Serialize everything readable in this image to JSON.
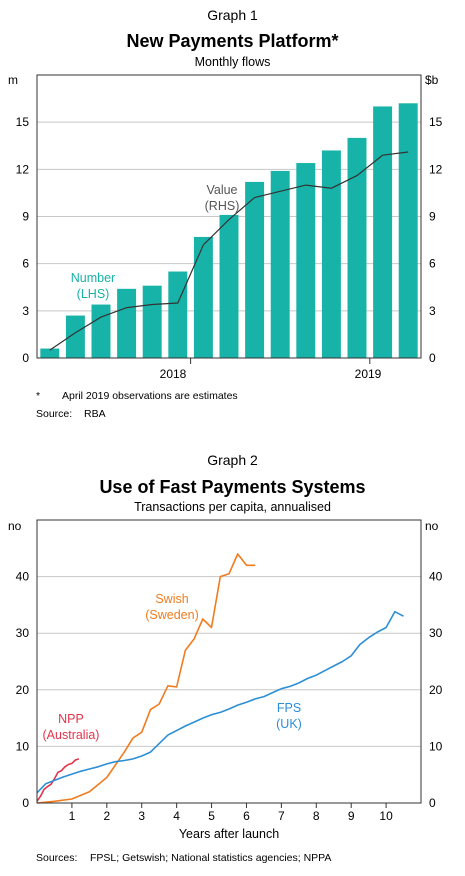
{
  "chart_data": [
    {
      "type": "bar",
      "graph_label": "Graph 1",
      "title": "New Payments Platform*",
      "subtitle": "Monthly flows",
      "left_axis": {
        "unit": "m",
        "ylim": [
          0,
          18
        ],
        "ticks": [
          0,
          3,
          6,
          9,
          12,
          15
        ]
      },
      "right_axis": {
        "unit": "$b",
        "ylim": [
          0,
          18
        ],
        "ticks": [
          0,
          3,
          6,
          9,
          12,
          15
        ]
      },
      "x_tick_labels": [
        "2018",
        "2019"
      ],
      "series": [
        {
          "name": "Number",
          "axis_note": "(LHS)",
          "kind": "bar",
          "color": "#17b3a8",
          "values": [
            0.6,
            2.7,
            3.4,
            4.4,
            4.6,
            5.5,
            7.7,
            9.1,
            11.2,
            11.9,
            12.4,
            13.2,
            14.0,
            16.0,
            16.2
          ]
        },
        {
          "name": "Value",
          "axis_note": "(RHS)",
          "kind": "line",
          "color": "#333333",
          "values": [
            0.5,
            1.6,
            2.6,
            3.2,
            3.4,
            3.5,
            7.2,
            8.8,
            10.2,
            10.6,
            11.0,
            10.8,
            11.6,
            12.9,
            13.1
          ]
        }
      ],
      "footnote_mark": "*",
      "footnote": "April 2019 observations are estimates",
      "source_label": "Source:",
      "source": "RBA"
    },
    {
      "type": "line",
      "graph_label": "Graph 2",
      "title": "Use of Fast Payments Systems",
      "subtitle": "Transactions per capita, annualised",
      "left_axis": {
        "unit": "no",
        "ylim": [
          0,
          50
        ],
        "ticks": [
          0,
          10,
          20,
          30,
          40
        ]
      },
      "right_axis": {
        "unit": "no",
        "ylim": [
          0,
          50
        ],
        "ticks": [
          0,
          10,
          20,
          30,
          40
        ]
      },
      "xlabel": "Years after launch",
      "xlim": [
        0,
        11
      ],
      "x_ticks": [
        1,
        2,
        3,
        4,
        5,
        6,
        7,
        8,
        9,
        10
      ],
      "series": [
        {
          "name": "NPP",
          "label_note": "(Australia)",
          "color": "#e3344c",
          "x": [
            0.0,
            0.1,
            0.2,
            0.3,
            0.4,
            0.5,
            0.6,
            0.7,
            0.8,
            0.9,
            1.0,
            1.1,
            1.2
          ],
          "y": [
            0.3,
            1.2,
            2.4,
            2.9,
            3.3,
            4.3,
            5.4,
            5.7,
            6.4,
            6.8,
            7.0,
            7.6,
            7.8
          ]
        },
        {
          "name": "Swish",
          "label_note": "(Sweden)",
          "color": "#f07c1f",
          "x": [
            0.0,
            0.5,
            1.0,
            1.5,
            2.0,
            2.5,
            2.75,
            3.0,
            3.25,
            3.5,
            3.75,
            4.0,
            4.25,
            4.5,
            4.75,
            5.0,
            5.25,
            5.5,
            5.75,
            6.0,
            6.25
          ],
          "y": [
            0.0,
            0.3,
            0.7,
            2.0,
            4.5,
            9.0,
            11.5,
            12.5,
            16.5,
            17.5,
            20.7,
            20.5,
            27.0,
            29.0,
            32.5,
            31.0,
            40.0,
            40.5,
            44.0,
            42.0,
            42.0
          ]
        },
        {
          "name": "FPS",
          "label_note": "(UK)",
          "color": "#2c8fd6",
          "x": [
            0.0,
            0.25,
            0.5,
            0.75,
            1.0,
            1.25,
            1.5,
            1.75,
            2.0,
            2.25,
            2.5,
            2.75,
            3.0,
            3.25,
            3.5,
            3.75,
            4.0,
            4.25,
            4.5,
            4.75,
            5.0,
            5.25,
            5.5,
            5.75,
            6.0,
            6.25,
            6.5,
            6.75,
            7.0,
            7.25,
            7.5,
            7.75,
            8.0,
            8.25,
            8.5,
            8.75,
            9.0,
            9.25,
            9.5,
            9.75,
            10.0,
            10.25,
            10.5
          ],
          "y": [
            1.8,
            3.4,
            4.0,
            4.6,
            5.1,
            5.6,
            6.0,
            6.4,
            6.9,
            7.3,
            7.5,
            7.8,
            8.3,
            9.0,
            10.5,
            12.0,
            12.8,
            13.6,
            14.3,
            15.0,
            15.6,
            16.0,
            16.6,
            17.3,
            17.8,
            18.4,
            18.8,
            19.5,
            20.2,
            20.6,
            21.2,
            22.0,
            22.6,
            23.4,
            24.2,
            25.0,
            26.0,
            28.0,
            29.2,
            30.2,
            31.0,
            33.8,
            33.0
          ]
        }
      ],
      "source_label": "Sources:",
      "source": "FPSL; Getswish; National statistics agencies; NPPA"
    }
  ]
}
